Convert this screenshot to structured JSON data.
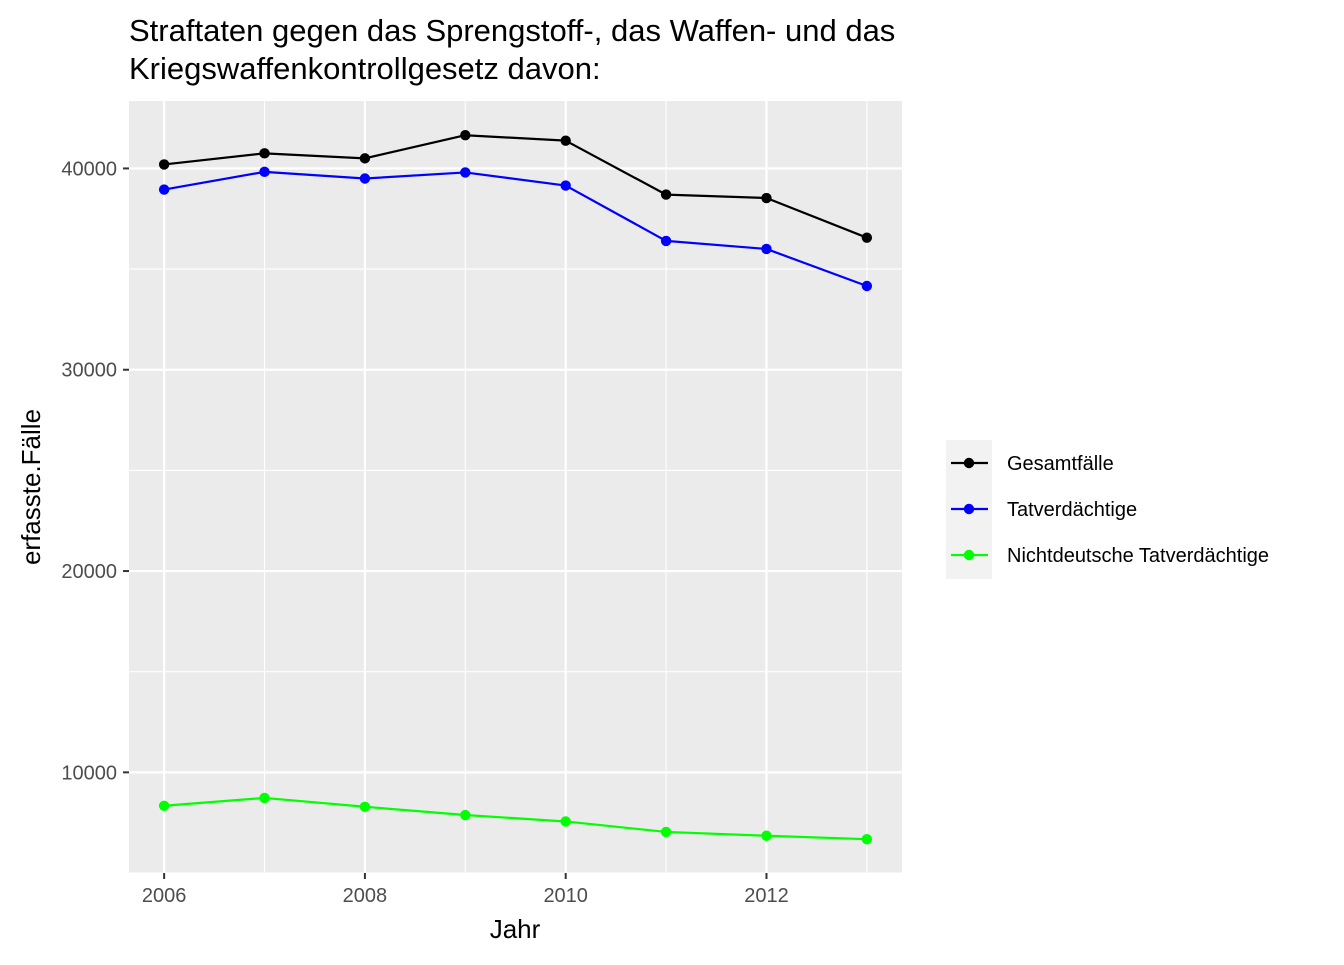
{
  "chart_data": {
    "type": "line",
    "title_lines": [
      "Straftaten gegen das Sprengstoff-, das Waffen- und das",
      "Kriegswaffenkontrollgesetz davon:"
    ],
    "xlabel": "Jahr",
    "ylabel": "erfasste.Fälle",
    "x": [
      2006,
      2007,
      2008,
      2009,
      2010,
      2011,
      2012,
      2013
    ],
    "xticks": [
      2006,
      2008,
      2010,
      2012
    ],
    "yticks": [
      10000,
      20000,
      30000,
      40000
    ],
    "xlim": [
      2005.65,
      2013.35
    ],
    "ylim": [
      5000,
      43350
    ],
    "grid": true,
    "legend_position": "right",
    "series": [
      {
        "name": "Gesamtfälle",
        "color": "#000000",
        "values": [
          40200,
          40750,
          40500,
          41650,
          41380,
          38700,
          38530,
          36560
        ]
      },
      {
        "name": "Tatverdächtige",
        "color": "#0000ff",
        "values": [
          38950,
          39830,
          39500,
          39800,
          39150,
          36400,
          36000,
          34160
        ]
      },
      {
        "name": "Nichtdeutsche Tatverdächtige",
        "color": "#00ff00",
        "values": [
          8340,
          8730,
          8290,
          7880,
          7560,
          7040,
          6850,
          6680
        ]
      }
    ]
  }
}
